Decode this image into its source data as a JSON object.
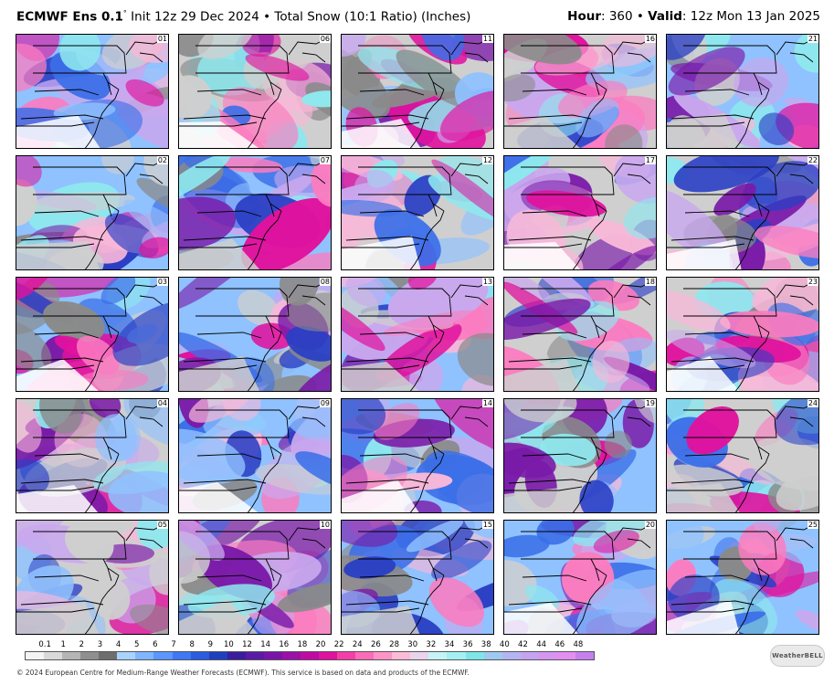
{
  "header": {
    "model": "ECMWF Ens 0.1",
    "degree": "°",
    "init": "Init 12z 29 Dec 2024",
    "separator": "•",
    "product": "Total Snow (10:1 Ratio) (Inches)",
    "hour_label": "Hour",
    "hour_value": ": 360 •",
    "valid_label": "Valid",
    "valid_value": ": 12z Mon 13 Jan 2025"
  },
  "members": [
    "01",
    "06",
    "11",
    "16",
    "21",
    "02",
    "07",
    "12",
    "17",
    "22",
    "03",
    "08",
    "13",
    "18",
    "23",
    "04",
    "09",
    "14",
    "19",
    "24",
    "05",
    "10",
    "15",
    "20",
    "25"
  ],
  "colorbar": {
    "labels": [
      "0.1",
      "1",
      "2",
      "3",
      "4",
      "5",
      "6",
      "7",
      "8",
      "9",
      "10",
      "12",
      "14",
      "16",
      "18",
      "20",
      "22",
      "24",
      "26",
      "28",
      "30",
      "32",
      "34",
      "36",
      "38",
      "40",
      "42",
      "44",
      "46",
      "48"
    ],
    "colors": [
      "#f4f4f4",
      "#d9d9d9",
      "#b5b5b5",
      "#8f8f8f",
      "#6e6e6e",
      "#a9d3ff",
      "#7fb6ff",
      "#5c96ff",
      "#3d78f5",
      "#2a5be0",
      "#1e3fc0",
      "#3b1d9f",
      "#5a1aa6",
      "#7a14a8",
      "#9c0fa8",
      "#c00aa3",
      "#e0129e",
      "#f43fa8",
      "#fb6cb8",
      "#fd94c8",
      "#fcbad9",
      "#e9d4ec",
      "#c6f3f5",
      "#a4f0f2",
      "#7ee6ea",
      "#9fc9f0",
      "#b3b5f2",
      "#c5a3f2",
      "#d695f0",
      "#e38ef0",
      "#c77ff0"
    ],
    "footer": "© 2024 European Centre for Medium-Range Weather Forecasts (ECMWF). This service is based on data and products of the ECMWF."
  },
  "logo": {
    "text": "WeatherBELL"
  },
  "map_colors": {
    "grey": "#8a8a8a",
    "lightgrey": "#cfcfcf",
    "white": "#ffffff",
    "lightblue": "#8fc2ff",
    "blue": "#3b6fe8",
    "darkblue": "#2a3fc4",
    "purple": "#7a1aa8",
    "magenta": "#e0129e",
    "pink": "#fb7cc0",
    "lightpink": "#f8b8d8",
    "cyan": "#8ee8ee",
    "lavender": "#c9a8ee"
  }
}
